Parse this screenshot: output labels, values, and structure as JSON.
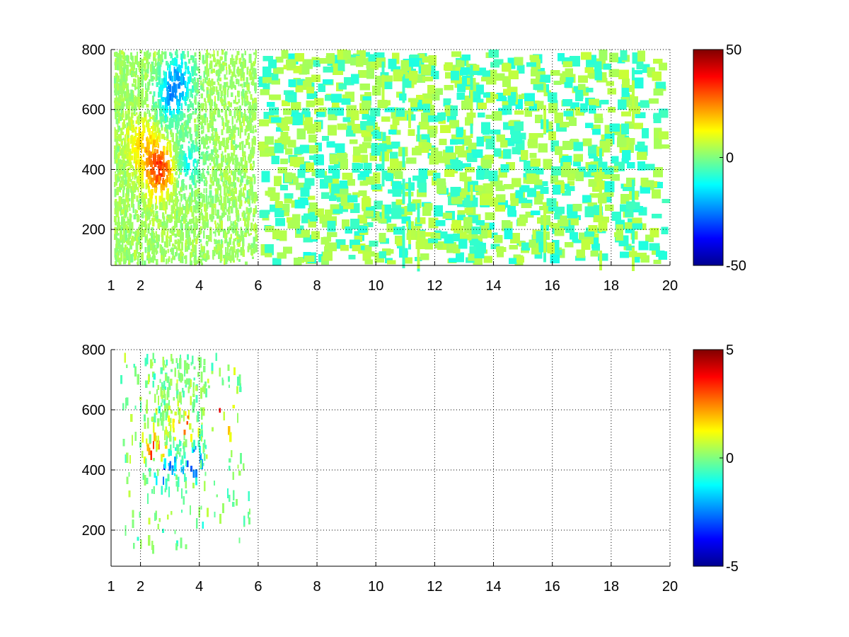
{
  "colormap": "jet",
  "colormap_stops": [
    "#00008f",
    "#0000ff",
    "#0080ff",
    "#00ffff",
    "#80ff80",
    "#ffff00",
    "#ff8000",
    "#ff0000",
    "#800000"
  ],
  "chart_data": [
    {
      "type": "heatmap",
      "title": "",
      "xlabel": "",
      "ylabel": "",
      "xlim": [
        1,
        20
      ],
      "ylim": [
        80,
        800
      ],
      "x_ticks": [
        1,
        2,
        4,
        6,
        8,
        10,
        12,
        14,
        16,
        18,
        20
      ],
      "x_tick_labels": [
        "1",
        "2",
        "4",
        "6",
        "8",
        "10",
        "12",
        "14",
        "16",
        "18",
        "20"
      ],
      "y_ticks": [
        200,
        400,
        600,
        800
      ],
      "y_tick_labels": [
        "200",
        "400",
        "600",
        "800"
      ],
      "grid": true,
      "colorbar": {
        "min": -50,
        "max": 50,
        "tick_values": [
          50,
          0,
          -50
        ],
        "tick_labels": [
          "50",
          "0",
          "-50"
        ]
      },
      "hotspots": [
        {
          "x": 3.0,
          "y": 650,
          "value": -20
        },
        {
          "x": 3.3,
          "y": 720,
          "value": -18
        },
        {
          "x": 2.6,
          "y": 410,
          "value": 30
        },
        {
          "x": 3.6,
          "y": 430,
          "value": -15
        },
        {
          "x": 2.0,
          "y": 500,
          "value": 12
        }
      ]
    },
    {
      "type": "heatmap",
      "title": "",
      "xlabel": "",
      "ylabel": "",
      "xlim": [
        1,
        20
      ],
      "ylim": [
        80,
        800
      ],
      "x_ticks": [
        1,
        2,
        4,
        6,
        8,
        10,
        12,
        14,
        16,
        18,
        20
      ],
      "x_tick_labels": [
        "1",
        "2",
        "4",
        "6",
        "8",
        "10",
        "12",
        "14",
        "16",
        "18",
        "20"
      ],
      "y_ticks": [
        200,
        400,
        600,
        800
      ],
      "y_tick_labels": [
        "200",
        "400",
        "600",
        "800"
      ],
      "grid": true,
      "colorbar": {
        "min": -5,
        "max": 5,
        "tick_values": [
          5,
          0,
          -5
        ],
        "tick_labels": [
          "5",
          "0",
          "-5"
        ]
      },
      "hotspots": [
        {
          "x": 2.8,
          "y": 420,
          "value": -4
        },
        {
          "x": 3.7,
          "y": 440,
          "value": -4
        },
        {
          "x": 4.8,
          "y": 590,
          "value": 4
        },
        {
          "x": 3.5,
          "y": 560,
          "value": 3
        },
        {
          "x": 2.5,
          "y": 480,
          "value": 4
        }
      ]
    }
  ]
}
